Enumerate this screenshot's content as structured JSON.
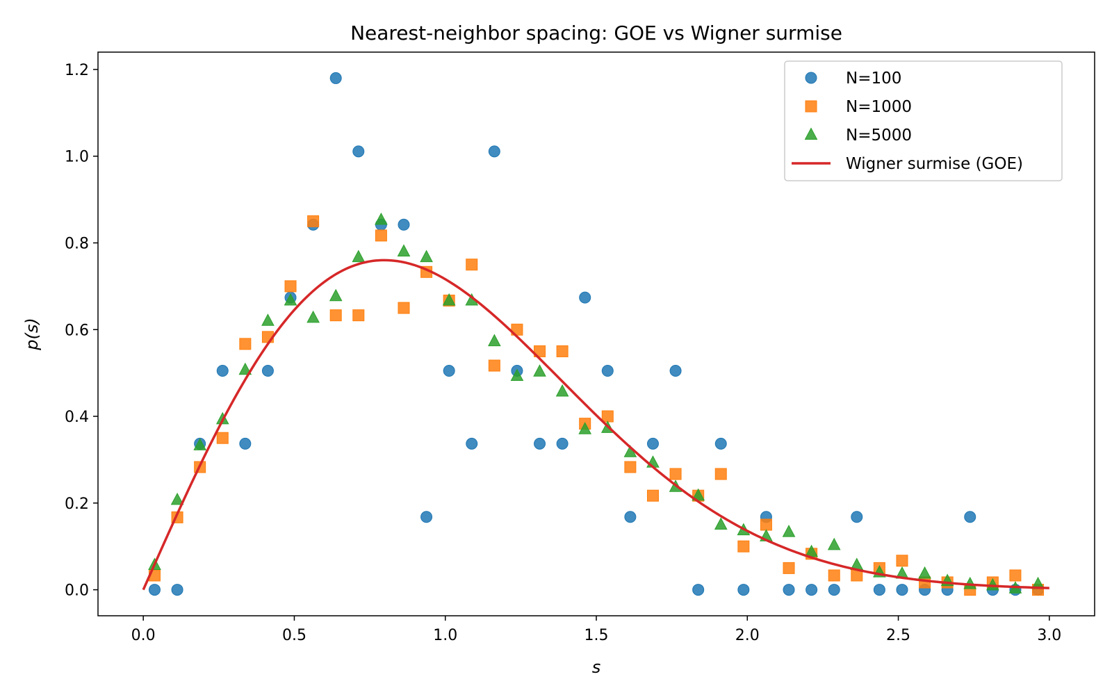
{
  "chart_data": {
    "type": "scatter",
    "title": "Nearest-neighbor spacing: GOE vs Wigner surmise",
    "xlabel": "s",
    "ylabel": "p(s)",
    "xlim": [
      -0.15,
      3.15
    ],
    "ylim": [
      -0.06,
      1.24
    ],
    "xticks": [
      0.0,
      0.5,
      1.0,
      1.5,
      2.0,
      2.5,
      3.0
    ],
    "xtick_labels": [
      "0.0",
      "0.5",
      "1.0",
      "1.5",
      "2.0",
      "2.5",
      "3.0"
    ],
    "yticks": [
      0.0,
      0.2,
      0.4,
      0.6,
      0.8,
      1.0,
      1.2
    ],
    "ytick_labels": [
      "0.0",
      "0.2",
      "0.4",
      "0.6",
      "0.8",
      "1.0",
      "1.2"
    ],
    "grid": false,
    "legend_position": "top-right",
    "x": [
      0.0375,
      0.1125,
      0.1875,
      0.2625,
      0.3375,
      0.4125,
      0.4875,
      0.5625,
      0.6375,
      0.7125,
      0.7875,
      0.8625,
      0.9375,
      1.0125,
      1.0875,
      1.1625,
      1.2375,
      1.3125,
      1.3875,
      1.4625,
      1.5375,
      1.6125,
      1.6875,
      1.7625,
      1.8375,
      1.9125,
      1.9875,
      2.0625,
      2.1375,
      2.2125,
      2.2875,
      2.3625,
      2.4375,
      2.5125,
      2.5875,
      2.6625,
      2.7375,
      2.8125,
      2.8875,
      2.9625
    ],
    "series": [
      {
        "name": "N=100",
        "marker": "circle",
        "color": "#1f77b4",
        "values": [
          0.0,
          0.0,
          0.337,
          0.505,
          0.337,
          0.505,
          0.674,
          0.842,
          1.18,
          1.011,
          0.842,
          0.842,
          0.168,
          0.505,
          0.337,
          1.011,
          0.505,
          0.337,
          0.337,
          0.674,
          0.505,
          0.168,
          0.337,
          0.505,
          0.0,
          0.337,
          0.0,
          0.168,
          0.0,
          0.0,
          0.0,
          0.168,
          0.0,
          0.0,
          0.0,
          0.0,
          0.168,
          0.0,
          0.0,
          0.0
        ]
      },
      {
        "name": "N=1000",
        "marker": "square",
        "color": "#ff7f0e",
        "values": [
          0.033,
          0.167,
          0.283,
          0.35,
          0.567,
          0.583,
          0.7,
          0.85,
          0.633,
          0.633,
          0.817,
          0.65,
          0.733,
          0.667,
          0.75,
          0.517,
          0.6,
          0.55,
          0.55,
          0.383,
          0.4,
          0.283,
          0.217,
          0.267,
          0.217,
          0.267,
          0.1,
          0.15,
          0.05,
          0.083,
          0.033,
          0.033,
          0.05,
          0.067,
          0.017,
          0.017,
          0.0,
          0.017,
          0.033,
          0.0
        ]
      },
      {
        "name": "N=5000",
        "marker": "triangle",
        "color": "#2ca02c",
        "values": [
          0.057,
          0.207,
          0.333,
          0.393,
          0.507,
          0.62,
          0.667,
          0.627,
          0.677,
          0.767,
          0.853,
          0.78,
          0.767,
          0.667,
          0.667,
          0.573,
          0.493,
          0.503,
          0.457,
          0.37,
          0.373,
          0.317,
          0.293,
          0.237,
          0.217,
          0.15,
          0.137,
          0.123,
          0.133,
          0.087,
          0.103,
          0.057,
          0.04,
          0.037,
          0.037,
          0.02,
          0.013,
          0.01,
          0.003,
          0.013
        ]
      }
    ],
    "curve": {
      "name": "Wigner surmise (GOE)",
      "color": "#d62728",
      "formula": "p(s) = (pi/2) s exp(-pi s^2 / 4)",
      "x_range": [
        0.0,
        3.0
      ]
    }
  }
}
